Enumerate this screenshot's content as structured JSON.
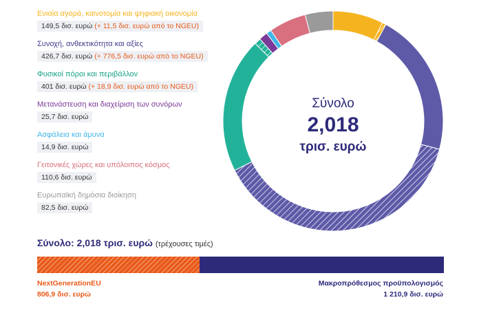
{
  "chart_data": [
    {
      "type": "pie",
      "donut": true,
      "center_label": {
        "line1": "Σύνολο",
        "value": "2,018",
        "unit": "τρισ. ευρώ"
      },
      "colors": {
        "ngeu_hatch": "#ffffff"
      },
      "slices": [
        {
          "name": "Ενιαία αγορά, καινοτομία και ψηφιακή οικονομία",
          "amount": "149,5 δισ. ευρώ",
          "ngeu_note": "(+ 11,5 δισ. ευρώ από το NGEU)",
          "mff_value": 149.5,
          "ngeu_value": 11.5,
          "color": "#f5b41f",
          "title_color": "#f5b41f"
        },
        {
          "name": "Συνοχή, ανθεκτικότητα και αξίες",
          "amount": "426,7 δισ. ευρώ",
          "ngeu_note": "(+ 776,5 δισ. ευρώ από το NGEU)",
          "mff_value": 426.7,
          "ngeu_value": 776.5,
          "color": "#5e5aa8",
          "title_color": "#3f3c8c"
        },
        {
          "name": "Φυσικοί πόροι και περιβάλλον",
          "amount": "401 δισ. ευρώ",
          "ngeu_note": "(+ 18,9 δισ. ευρώ από το NGEU)",
          "mff_value": 401.0,
          "ngeu_value": 18.9,
          "color": "#22b29a",
          "title_color": "#16a088"
        },
        {
          "name": "Μετανάστευση και διαχείριση των συνόρων",
          "amount": "25,7 δισ. ευρώ",
          "ngeu_note": "",
          "mff_value": 25.7,
          "ngeu_value": 0,
          "color": "#7a3a98",
          "title_color": "#7a3a98"
        },
        {
          "name": "Ασφάλεια και άμυνα",
          "amount": "14,9 δισ. ευρώ",
          "ngeu_note": "",
          "mff_value": 14.9,
          "ngeu_value": 0,
          "color": "#3fb6e6",
          "title_color": "#3fb6e6"
        },
        {
          "name": "Γειτονικές χώρες και υπόλοιπος κόσμος",
          "amount": "110,6 δισ. ευρώ",
          "ngeu_note": "",
          "mff_value": 110.6,
          "ngeu_value": 0,
          "color": "#d9707f",
          "title_color": "#d9707f"
        },
        {
          "name": "Ευρωπαϊκή δημόσια διοίκηση",
          "amount": "82,5 δισ. ευρώ",
          "ngeu_note": "",
          "mff_value": 82.5,
          "ngeu_value": 0,
          "color": "#9a9a9a",
          "title_color": "#9a9a9a"
        }
      ]
    },
    {
      "type": "bar",
      "orientation": "horizontal",
      "stacked": true,
      "title": "Σύνολο: 2,018 τρισ. ευρώ",
      "subtitle": "(τρέχουσες τιμές)",
      "series": [
        {
          "name": "NextGenerationEU",
          "value": 806.9,
          "label": "806,9 δισ. ευρώ",
          "color": "#e85a1a"
        },
        {
          "name": "Μακροπρόθεσμος προϋπολογισμός",
          "value": 1210.9,
          "label": "1 210,9 δισ. ευρώ",
          "color": "#2d2a7a"
        }
      ]
    }
  ]
}
